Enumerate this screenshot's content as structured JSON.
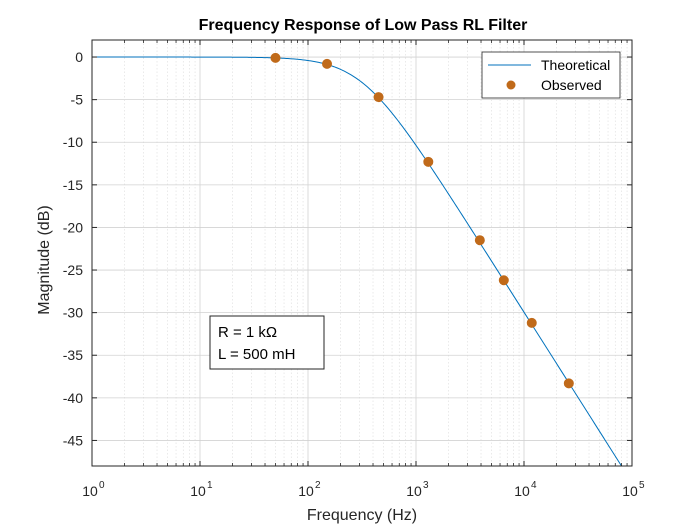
{
  "chart_data": {
    "type": "line",
    "title": "Frequency Response of Low Pass RL Filter",
    "xlabel": "Frequency (Hz)",
    "ylabel": "Magnitude (dB)",
    "xscale": "log",
    "xlim": [
      1,
      100000
    ],
    "ylim": [
      -48,
      2
    ],
    "x_ticks": [
      {
        "base": "10",
        "exp": "0",
        "value": 1
      },
      {
        "base": "10",
        "exp": "1",
        "value": 10
      },
      {
        "base": "10",
        "exp": "2",
        "value": 100
      },
      {
        "base": "10",
        "exp": "3",
        "value": 1000
      },
      {
        "base": "10",
        "exp": "4",
        "value": 10000
      },
      {
        "base": "10",
        "exp": "5",
        "value": 100000
      }
    ],
    "y_ticks": [
      {
        "label": "0",
        "value": 0
      },
      {
        "label": "-5",
        "value": -5
      },
      {
        "label": "-10",
        "value": -10
      },
      {
        "label": "-15",
        "value": -15
      },
      {
        "label": "-20",
        "value": -20
      },
      {
        "label": "-25",
        "value": -25
      },
      {
        "label": "-30",
        "value": -30
      },
      {
        "label": "-35",
        "value": -35
      },
      {
        "label": "-40",
        "value": -40
      },
      {
        "label": "-45",
        "value": -45
      }
    ],
    "grid": true,
    "minor_grid": true,
    "legend_position": "top-right",
    "series": [
      {
        "name": "Theoretical",
        "style": "line",
        "color": "#0072BD",
        "model": {
          "kind": "first-order-lowpass",
          "cutoff_hz": 318.3
        },
        "x_range": [
          1,
          100000
        ]
      },
      {
        "name": "Observed",
        "style": "markers",
        "color": "#C06A1A",
        "points": [
          {
            "x": 50,
            "y": -0.1
          },
          {
            "x": 150,
            "y": -0.8
          },
          {
            "x": 450,
            "y": -4.7
          },
          {
            "x": 1300,
            "y": -12.3
          },
          {
            "x": 3900,
            "y": -21.5
          },
          {
            "x": 6500,
            "y": -26.2
          },
          {
            "x": 11800,
            "y": -31.2
          },
          {
            "x": 26000,
            "y": -38.3
          }
        ]
      }
    ],
    "annotation": {
      "lines": [
        "R = 1 kΩ",
        "L = 500 mH"
      ]
    }
  }
}
